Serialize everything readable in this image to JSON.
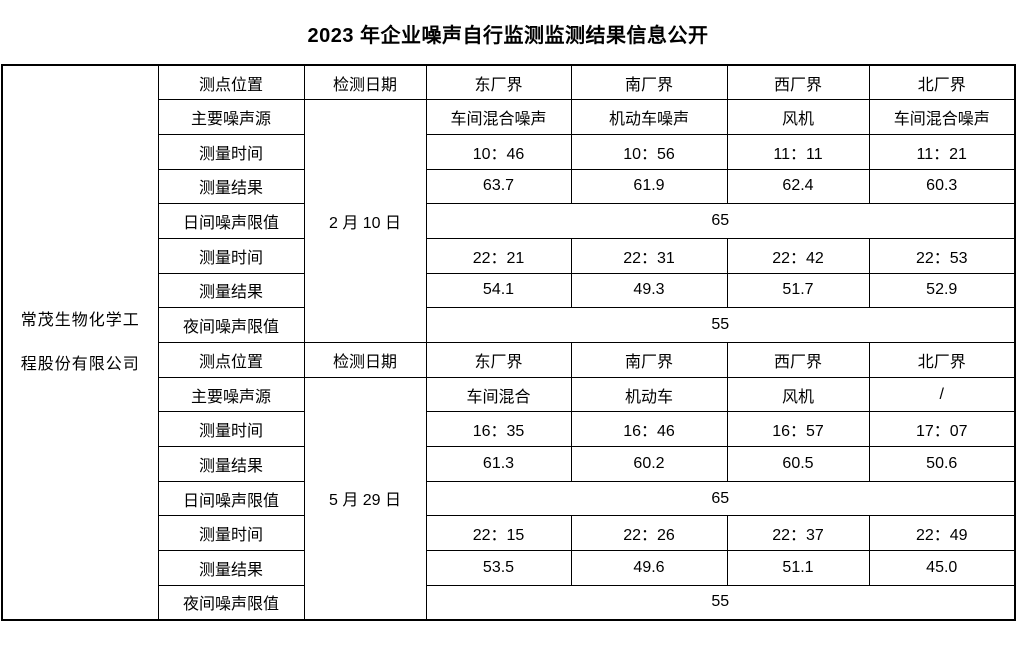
{
  "title": "2023 年企业噪声自行监测监测结果信息公开",
  "company": {
    "line1": "常茂生物化学工",
    "line2": "程股份有限公司"
  },
  "table": {
    "groups": [
      {
        "date": "2 月 10 日",
        "header": {
          "label": "测点位置",
          "date_label": "检测日期",
          "points": [
            "东厂界",
            "南厂界",
            "西厂界",
            "北厂界"
          ]
        },
        "rows": [
          {
            "label": "主要噪声源",
            "values": [
              "车间混合噪声",
              "机动车噪声",
              "风机",
              "车间混合噪声"
            ]
          },
          {
            "label": "测量时间",
            "values": [
              "10：46",
              "10：56",
              "11：11",
              "11：21"
            ]
          },
          {
            "label": "测量结果",
            "values": [
              "63.7",
              "61.9",
              "62.4",
              "60.3"
            ]
          },
          {
            "label": "日间噪声限值",
            "limit": "65"
          },
          {
            "label": "测量时间",
            "values": [
              "22：21",
              "22：31",
              "22：42",
              "22：53"
            ]
          },
          {
            "label": "测量结果",
            "values": [
              "54.1",
              "49.3",
              "51.7",
              "52.9"
            ]
          },
          {
            "label": "夜间噪声限值",
            "limit": "55"
          }
        ]
      },
      {
        "date": "5 月 29 日",
        "header": {
          "label": "测点位置",
          "date_label": "检测日期",
          "points": [
            "东厂界",
            "南厂界",
            "西厂界",
            "北厂界"
          ]
        },
        "rows": [
          {
            "label": "主要噪声源",
            "values": [
              "车间混合",
              "机动车",
              "风机",
              "/"
            ]
          },
          {
            "label": "测量时间",
            "values": [
              "16：35",
              "16：46",
              "16：57",
              "17：07"
            ]
          },
          {
            "label": "测量结果",
            "values": [
              "61.3",
              "60.2",
              "60.5",
              "50.6"
            ]
          },
          {
            "label": "日间噪声限值",
            "limit": "65"
          },
          {
            "label": "测量时间",
            "values": [
              "22：15",
              "22：26",
              "22：37",
              "22：49"
            ]
          },
          {
            "label": "测量结果",
            "values": [
              "53.5",
              "49.6",
              "51.1",
              "45.0"
            ]
          },
          {
            "label": "夜间噪声限值",
            "limit": "55"
          }
        ]
      }
    ]
  }
}
